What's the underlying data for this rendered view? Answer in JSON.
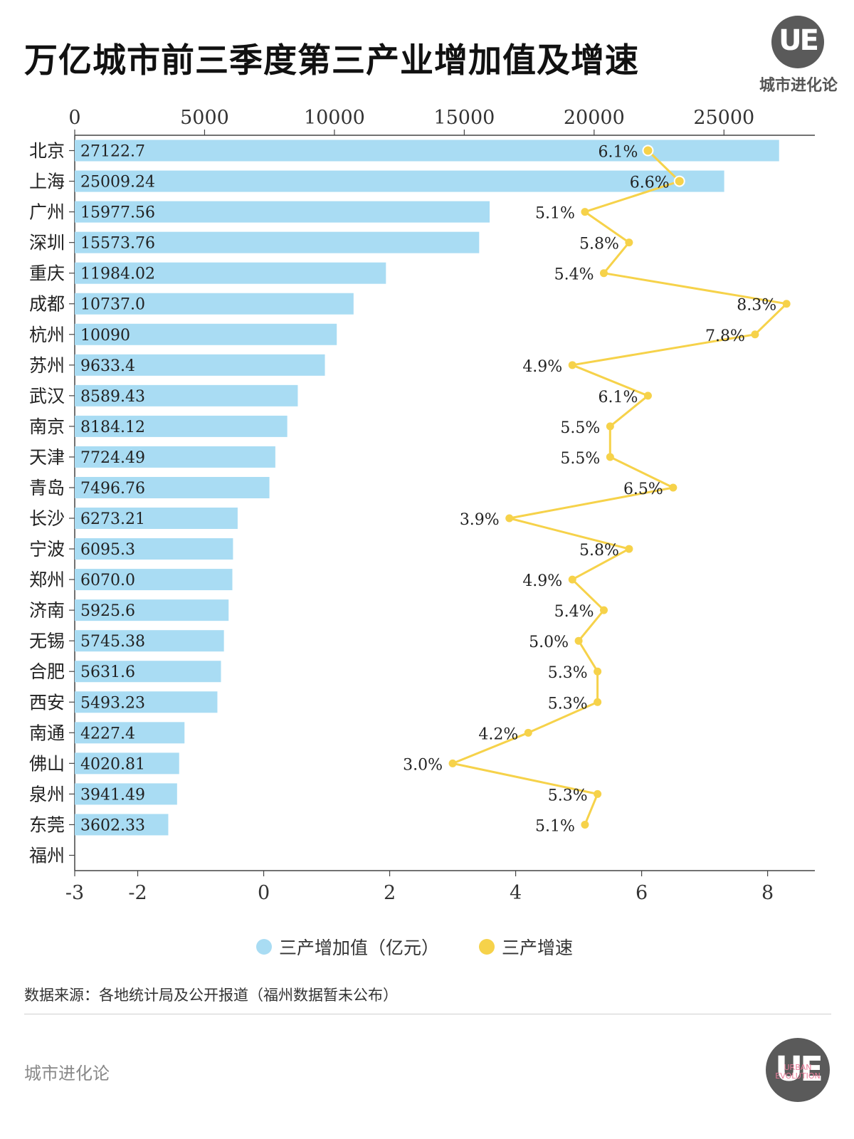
{
  "title": "万亿城市前三季度第三产业增加值及增速",
  "brand": {
    "logo_text": "UE",
    "name": "城市进化论",
    "sub": "URBAN EVOLUTION"
  },
  "legend": {
    "bar_label": "三产增加值（亿元）",
    "line_label": "三产增速"
  },
  "source": "数据来源：各地统计局及公开报道（福州数据暂未公布）",
  "footer": {
    "brand": "城市进化论"
  },
  "colors": {
    "bar": "#a9dcf3",
    "line": "#f6d24a",
    "text": "#222222"
  },
  "chart_data": {
    "type": "bar",
    "categories": [
      "北京",
      "上海",
      "广州",
      "深圳",
      "重庆",
      "成都",
      "杭州",
      "苏州",
      "武汉",
      "南京",
      "天津",
      "青岛",
      "长沙",
      "宁波",
      "郑州",
      "济南",
      "无锡",
      "合肥",
      "西安",
      "南通",
      "佛山",
      "泉州",
      "东莞",
      "福州"
    ],
    "series": [
      {
        "name": "三产增加值（亿元）",
        "type": "bar",
        "axis": "top",
        "values": [
          27122.7,
          25009.24,
          15977.56,
          15573.76,
          11984.02,
          10737.0,
          10090,
          9633.4,
          8589.43,
          8184.12,
          7724.49,
          7496.76,
          6273.21,
          6095.3,
          6070.0,
          5925.6,
          5745.38,
          5631.6,
          5493.23,
          4227.4,
          4020.81,
          3941.49,
          3602.33,
          null
        ],
        "labels": [
          "27122.7",
          "25009.24",
          "15977.56",
          "15573.76",
          "11984.02",
          "10737.0",
          "10090",
          "9633.4",
          "8589.43",
          "8184.12",
          "7724.49",
          "7496.76",
          "6273.21",
          "6095.3",
          "6070.0",
          "5925.6",
          "5745.38",
          "5631.6",
          "5493.23",
          "4227.4",
          "4020.81",
          "3941.49",
          "3602.33",
          ""
        ]
      },
      {
        "name": "三产增速",
        "type": "line",
        "axis": "bottom",
        "values": [
          6.1,
          6.6,
          5.1,
          5.8,
          5.4,
          8.3,
          7.8,
          4.9,
          6.1,
          5.5,
          5.5,
          6.5,
          3.9,
          5.8,
          4.9,
          5.4,
          5.0,
          5.3,
          5.3,
          4.2,
          3.0,
          5.3,
          5.1,
          null
        ],
        "labels": [
          "6.1%",
          "6.6%",
          "5.1%",
          "5.8%",
          "5.4%",
          "8.3%",
          "7.8%",
          "4.9%",
          "6.1%",
          "5.5%",
          "5.5%",
          "6.5%",
          "3.9%",
          "5.8%",
          "4.9%",
          "5.4%",
          "5.0%",
          "5.3%",
          "5.3%",
          "4.2%",
          "3.0%",
          "5.3%",
          "5.1%",
          ""
        ]
      }
    ],
    "x_top": {
      "min": 0,
      "max": 28500,
      "ticks": [
        "0",
        "5000",
        "10000",
        "15000",
        "20000",
        "25000"
      ]
    },
    "x_bottom": {
      "min": -3,
      "max": 8.75,
      "ticks": [
        "-3",
        "-2",
        "0",
        "2",
        "4",
        "6",
        "8"
      ]
    },
    "grid": false,
    "legend_position": "bottom"
  }
}
